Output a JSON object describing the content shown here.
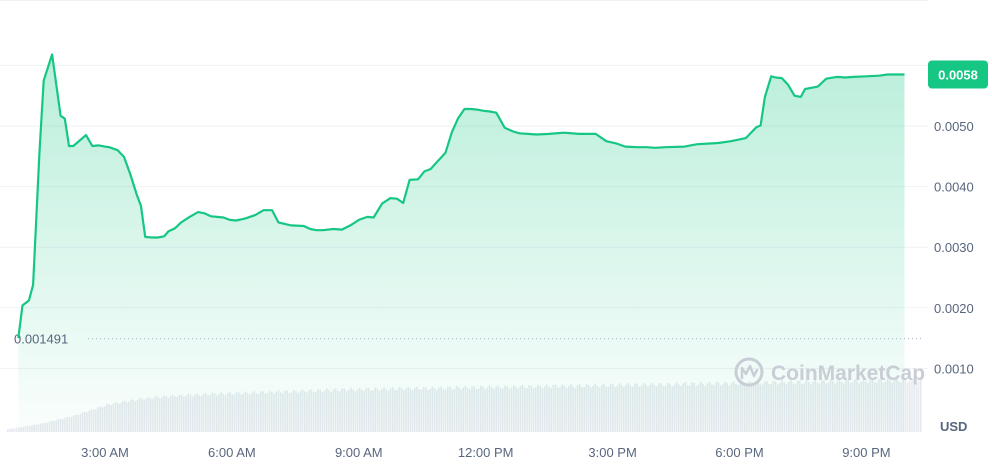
{
  "chart_data": {
    "type": "area",
    "watermark": "CoinMarketCap",
    "currency": "USD",
    "current_price_label": "0.0058",
    "opening_price_label": "0.001491",
    "opening_price": 0.001491,
    "ylim": [
      0.0,
      0.0063
    ],
    "y_ticks": [
      {
        "value": 0.001,
        "label": "0.0010"
      },
      {
        "value": 0.002,
        "label": "0.0020"
      },
      {
        "value": 0.003,
        "label": "0.0030"
      },
      {
        "value": 0.004,
        "label": "0.0040"
      },
      {
        "value": 0.005,
        "label": "0.0050"
      }
    ],
    "x_ticks": [
      {
        "hour": 3,
        "label": "3:00 AM"
      },
      {
        "hour": 6,
        "label": "6:00 AM"
      },
      {
        "hour": 9,
        "label": "9:00 AM"
      },
      {
        "hour": 12,
        "label": "12:00 PM"
      },
      {
        "hour": 15,
        "label": "3:00 PM"
      },
      {
        "hour": 18,
        "label": "6:00 PM"
      },
      {
        "hour": 21,
        "label": "9:00 PM"
      }
    ],
    "colors": {
      "line": "#16c784",
      "badge": "#16c784",
      "grid": "#eff2f5",
      "volume": "#e6e9ee"
    },
    "series": [
      {
        "x": [
          0.95,
          1.05,
          1.2,
          1.3,
          1.45,
          1.55,
          1.75,
          1.95,
          2.05,
          2.15,
          2.25,
          2.55,
          2.7,
          2.85,
          3.0,
          3.1,
          3.3,
          3.45,
          3.6,
          3.75,
          3.85,
          3.95,
          4.1,
          4.25,
          4.4,
          4.5,
          4.65,
          4.8,
          5.0,
          5.2,
          5.35,
          5.5,
          5.65,
          5.8,
          5.95,
          6.1,
          6.3,
          6.55,
          6.75,
          6.95,
          7.1,
          7.4,
          7.7,
          7.85,
          8.0,
          8.15,
          8.4,
          8.6,
          8.8,
          9.0,
          9.2,
          9.35,
          9.55,
          9.75,
          9.9,
          10.05,
          10.2,
          10.4,
          10.55,
          10.7,
          10.85,
          11.05,
          11.2,
          11.35,
          11.5,
          11.65,
          11.8,
          11.95,
          12.1,
          12.25,
          12.45,
          12.65,
          12.8,
          13.0,
          13.2,
          13.5,
          13.85,
          14.2,
          14.6,
          14.85,
          15.1,
          15.3,
          15.6,
          15.8,
          16.0,
          16.25,
          16.7,
          17.0,
          17.25,
          17.5,
          17.8,
          18.15,
          18.4,
          18.5,
          18.6,
          18.75,
          18.85,
          19.0,
          19.15,
          19.3,
          19.45,
          19.55,
          19.7,
          19.85,
          20.05,
          20.3,
          20.5,
          20.7,
          21.0,
          21.3,
          21.5,
          21.9
        ],
        "values": [
          0.0015,
          0.00204,
          0.00212,
          0.00238,
          0.00455,
          0.00575,
          0.00618,
          0.00517,
          0.00512,
          0.00467,
          0.00467,
          0.00485,
          0.00467,
          0.00468,
          0.00466,
          0.00465,
          0.0046,
          0.00449,
          0.0042,
          0.00387,
          0.00368,
          0.00317,
          0.00316,
          0.00316,
          0.00318,
          0.00326,
          0.00331,
          0.00341,
          0.0035,
          0.00358,
          0.00356,
          0.00351,
          0.0035,
          0.00349,
          0.00345,
          0.00344,
          0.00347,
          0.00353,
          0.00361,
          0.00361,
          0.00341,
          0.00336,
          0.00335,
          0.0033,
          0.00328,
          0.00328,
          0.0033,
          0.00329,
          0.00336,
          0.00345,
          0.0035,
          0.00349,
          0.00372,
          0.00381,
          0.0038,
          0.00373,
          0.00411,
          0.00412,
          0.00425,
          0.00429,
          0.00441,
          0.00456,
          0.0049,
          0.00513,
          0.00528,
          0.00528,
          0.00527,
          0.00525,
          0.00524,
          0.00522,
          0.00497,
          0.00491,
          0.00488,
          0.00487,
          0.00486,
          0.00487,
          0.00489,
          0.00487,
          0.00487,
          0.00475,
          0.00471,
          0.00466,
          0.00465,
          0.00465,
          0.00464,
          0.00465,
          0.00466,
          0.0047,
          0.00471,
          0.00472,
          0.00475,
          0.0048,
          0.00498,
          0.00501,
          0.00548,
          0.00582,
          0.0058,
          0.00579,
          0.00568,
          0.0055,
          0.00548,
          0.00561,
          0.00563,
          0.00565,
          0.00578,
          0.00581,
          0.0058,
          0.00581,
          0.00582,
          0.00583,
          0.00585,
          0.00585
        ]
      }
    ],
    "volume": {
      "unit_scale": "relative",
      "start_hour": 0.95,
      "end_hour": 21.95,
      "profile": [
        0.05,
        0.15,
        0.3,
        0.5,
        0.6,
        0.65,
        0.68,
        0.7,
        0.72,
        0.74,
        0.76,
        0.77,
        0.78,
        0.79,
        0.8,
        0.81,
        0.82,
        0.83,
        0.84,
        0.85,
        0.86,
        0.87,
        0.88,
        0.89,
        0.9,
        0.91,
        0.92,
        0.93
      ]
    }
  }
}
